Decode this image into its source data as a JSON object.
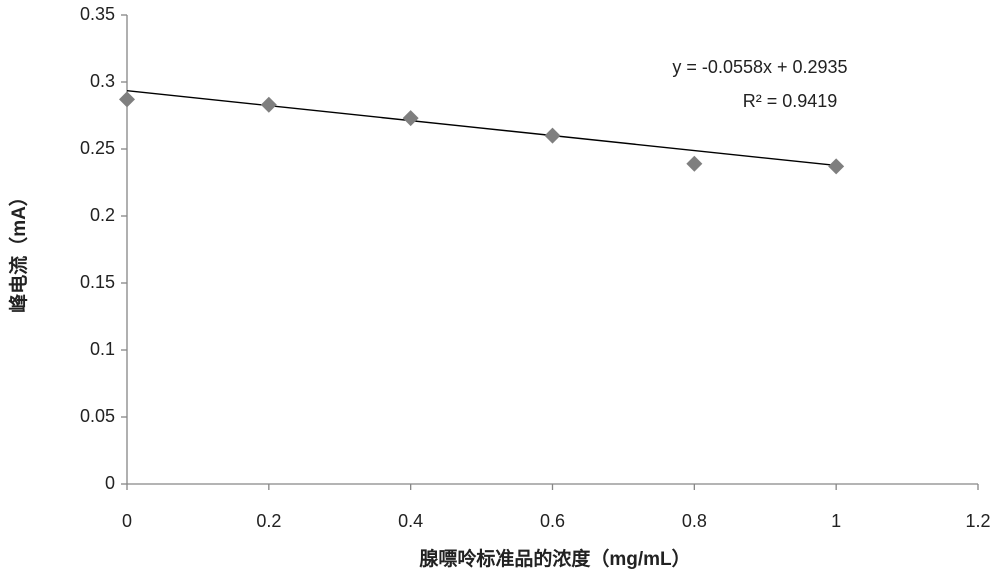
{
  "chart_data": {
    "type": "scatter",
    "x_label": "腺嘌呤标准品的浓度（mg/mL）",
    "y_label": "峰电流（mA）",
    "series": [
      {
        "x": [
          0,
          0.2,
          0.4,
          0.6,
          0.8,
          1.0
        ],
        "values": [
          0.287,
          0.283,
          0.273,
          0.26,
          0.239,
          0.237
        ],
        "color": "#7f7f7f"
      }
    ],
    "trendline": {
      "slope": -0.0558,
      "intercept": 0.2935,
      "color": "#000000",
      "equation": "y = -0.0558x + 0.2935",
      "r_squared": 0.9419,
      "r_squared_label": "R² = 0.9419"
    },
    "xlim": [
      0,
      1.2
    ],
    "xticks": [
      0,
      0.2,
      0.4,
      0.6,
      0.8,
      1,
      1.2
    ],
    "ylim": [
      0,
      0.35
    ],
    "yticks": [
      0,
      0.05,
      0.1,
      0.15,
      0.2,
      0.25,
      0.3,
      0.35
    ],
    "grid": false
  }
}
